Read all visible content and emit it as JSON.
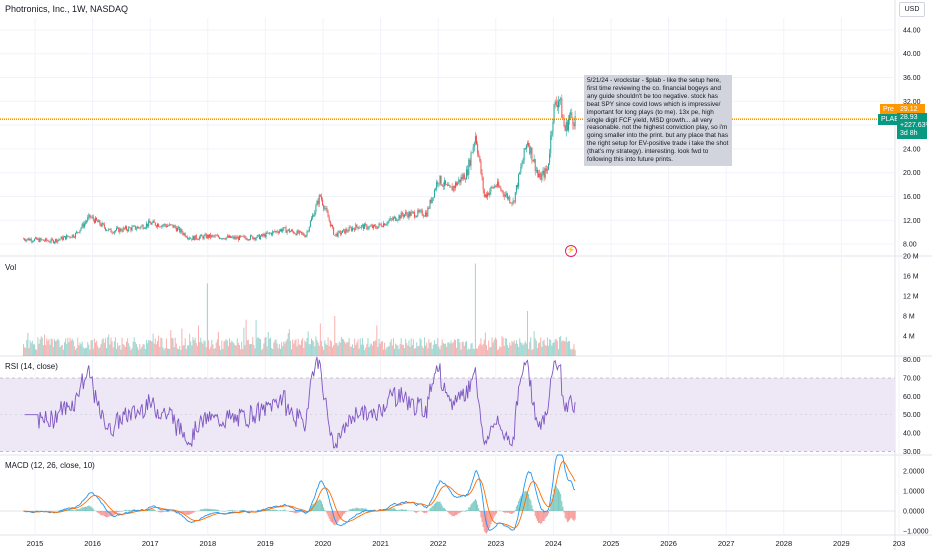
{
  "title": "Photronics, Inc., 1W, NASDAQ",
  "currency": "USD",
  "annotation": "5/21/24 - vrockstar - $plab - like the setup here, first time reviewing the co. financial bogeys and any guide shouldn't be too negative. stock has beat SPY since covid lows which is impressive/ important for long plays (to me). 13x pe, high single digit FCF yield, MSD growth... all very reasonable. not the highest conviction play, so i'm going smaller into the print. but any place that has the right setup for EV-positive trade i take the shot (that's my strategy). interesting. look fwd to following this into future prints.",
  "tags": {
    "pre_label": "Pre",
    "pre_value": "29.12",
    "ticker": "PLAB",
    "last": "28.93",
    "change": "+227.63%",
    "countdown": "3d 8h"
  },
  "panes": {
    "volume_label": "Vol",
    "rsi_label": "RSI (14, close)",
    "macd_label": "MACD (12, 26, close, 10)"
  },
  "colors": {
    "up": "#26a69a",
    "down": "#ef5350",
    "rsi_line": "#7e57c2",
    "rsi_band": "#ede7f6",
    "macd_line": "#2196f3",
    "signal_line": "#ff6d00",
    "hist_up": "#26a69a",
    "hist_down": "#ef5350",
    "grid": "#f0f3fa",
    "note_bg": "#d1d4dc"
  },
  "chart_data": [
    {
      "type": "candlestick",
      "title": "Photronics, Inc., 1W, NASDAQ",
      "x_ticks": [
        "2015",
        "2016",
        "2017",
        "2018",
        "2019",
        "2020",
        "2021",
        "2022",
        "2023",
        "2024",
        "2025",
        "2026",
        "2027",
        "2028",
        "2029",
        "203"
      ],
      "y_ticks": [
        "44.00",
        "40.00",
        "36.00",
        "32.00",
        "28.00",
        "24.00",
        "20.00",
        "16.00",
        "12.00",
        "8.00"
      ],
      "ylim": [
        6,
        46
      ],
      "keypoints": [
        {
          "x": 2014.8,
          "y": 8.9
        },
        {
          "x": 2015.3,
          "y": 8.5
        },
        {
          "x": 2015.7,
          "y": 9.6
        },
        {
          "x": 2015.95,
          "y": 12.6
        },
        {
          "x": 2016.3,
          "y": 10.2
        },
        {
          "x": 2016.8,
          "y": 10.8
        },
        {
          "x": 2017.0,
          "y": 11.5
        },
        {
          "x": 2017.4,
          "y": 11.0
        },
        {
          "x": 2017.7,
          "y": 9.0
        },
        {
          "x": 2018.0,
          "y": 9.3
        },
        {
          "x": 2018.5,
          "y": 9.0
        },
        {
          "x": 2018.9,
          "y": 9.2
        },
        {
          "x": 2019.3,
          "y": 10.5
        },
        {
          "x": 2019.7,
          "y": 9.5
        },
        {
          "x": 2019.95,
          "y": 16.2
        },
        {
          "x": 2020.2,
          "y": 9.5
        },
        {
          "x": 2020.6,
          "y": 11.0
        },
        {
          "x": 2020.9,
          "y": 10.8
        },
        {
          "x": 2021.4,
          "y": 13.0
        },
        {
          "x": 2021.8,
          "y": 13.2
        },
        {
          "x": 2022.0,
          "y": 19.0
        },
        {
          "x": 2022.2,
          "y": 17.0
        },
        {
          "x": 2022.5,
          "y": 20.0
        },
        {
          "x": 2022.65,
          "y": 26.5
        },
        {
          "x": 2022.8,
          "y": 16.0
        },
        {
          "x": 2023.0,
          "y": 18.0
        },
        {
          "x": 2023.3,
          "y": 15.0
        },
        {
          "x": 2023.55,
          "y": 25.5
        },
        {
          "x": 2023.75,
          "y": 19.0
        },
        {
          "x": 2023.9,
          "y": 20.5
        },
        {
          "x": 2024.0,
          "y": 30.5
        },
        {
          "x": 2024.1,
          "y": 32.8
        },
        {
          "x": 2024.2,
          "y": 27.0
        },
        {
          "x": 2024.28,
          "y": 29.5
        },
        {
          "x": 2024.38,
          "y": 28.93
        }
      ]
    },
    {
      "type": "bar",
      "title": "Vol",
      "y_ticks": [
        "20 M",
        "16 M",
        "12 M",
        "8 M",
        "4 M"
      ],
      "ylim": [
        0,
        20000000
      ]
    },
    {
      "type": "line",
      "title": "RSI (14, close)",
      "y_ticks": [
        "80.00",
        "70.00",
        "60.00",
        "50.00",
        "40.00",
        "30.00"
      ],
      "ylim": [
        28,
        82
      ],
      "bands": [
        30,
        70
      ],
      "last": 54
    },
    {
      "type": "line",
      "title": "MACD (12, 26, close, 10)",
      "series": [],
      "y_ticks": [
        "2.0000",
        "1.0000",
        "0.0000",
        "−1.0000"
      ],
      "ylim": [
        -1.2,
        2.8
      ]
    }
  ]
}
